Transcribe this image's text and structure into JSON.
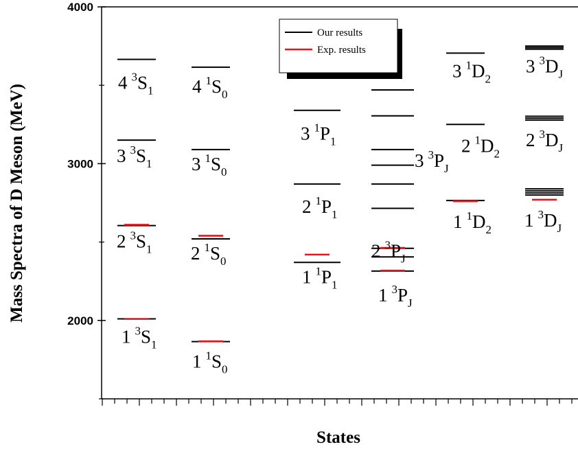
{
  "chart_data": {
    "type": "level-diagram",
    "title": "",
    "xlabel": "States",
    "ylabel": "Mass Spectra of D Meson (MeV)",
    "ylim": [
      1500,
      4000
    ],
    "yticks": [
      2000,
      3000,
      4000
    ],
    "yminor": [
      1500,
      2500,
      3500
    ],
    "grid": false,
    "legend": {
      "position": "top-center",
      "entries": [
        {
          "label": "Our results",
          "color": "#000000"
        },
        {
          "label": "Exp. results",
          "color": "#e8141b"
        }
      ]
    },
    "colors": {
      "our": "#000000",
      "exp": "#e8141b"
    },
    "states": [
      {
        "label": {
          "n": "1",
          "mult": "3",
          "L": "S",
          "J": "1"
        },
        "our": [
          2010
        ],
        "exp": [
          2010
        ]
      },
      {
        "label": {
          "n": "2",
          "mult": "3",
          "L": "S",
          "J": "1"
        },
        "our": [
          2605
        ],
        "exp": [
          2610
        ]
      },
      {
        "label": {
          "n": "3",
          "mult": "3",
          "L": "S",
          "J": "1"
        },
        "our": [
          3150
        ],
        "exp": []
      },
      {
        "label": {
          "n": "4",
          "mult": "3",
          "L": "S",
          "J": "1"
        },
        "our": [
          3665
        ],
        "exp": []
      },
      {
        "label": {
          "n": "1",
          "mult": "1",
          "L": "S",
          "J": "0"
        },
        "our": [
          1865
        ],
        "exp": [
          1867
        ]
      },
      {
        "label": {
          "n": "2",
          "mult": "1",
          "L": "S",
          "J": "0"
        },
        "our": [
          2520
        ],
        "exp": [
          2540
        ]
      },
      {
        "label": {
          "n": "3",
          "mult": "1",
          "L": "S",
          "J": "0"
        },
        "our": [
          3090
        ],
        "exp": []
      },
      {
        "label": {
          "n": "4",
          "mult": "1",
          "L": "S",
          "J": "0"
        },
        "our": [
          3615
        ],
        "exp": []
      },
      {
        "label": {
          "n": "1",
          "mult": "1",
          "L": "P",
          "J": "1"
        },
        "our": [
          2370
        ],
        "exp": [
          2420
        ]
      },
      {
        "label": {
          "n": "2",
          "mult": "1",
          "L": "P",
          "J": "1"
        },
        "our": [
          2870
        ],
        "exp": []
      },
      {
        "label": {
          "n": "3",
          "mult": "1",
          "L": "P",
          "J": "1"
        },
        "our": [
          3340
        ],
        "exp": []
      },
      {
        "label": {
          "n": "1",
          "mult": "3",
          "L": "P",
          "J": "J"
        },
        "our": [
          2315,
          2405,
          2460
        ],
        "exp": [
          2318,
          2463
        ]
      },
      {
        "label": {
          "n": "2",
          "mult": "3",
          "L": "P",
          "J": "J"
        },
        "our": [
          2715,
          2870
        ],
        "exp": []
      },
      {
        "label": {
          "n": "3",
          "mult": "3",
          "L": "P",
          "J": "J"
        },
        "our": [
          2990,
          3090,
          3305,
          3470
        ],
        "exp": []
      },
      {
        "label": {
          "n": "1",
          "mult": "1",
          "L": "D",
          "J": "2"
        },
        "our": [
          2765
        ],
        "exp": [
          2760
        ]
      },
      {
        "label": {
          "n": "2",
          "mult": "1",
          "L": "D",
          "J": "2"
        },
        "our": [
          3250
        ],
        "exp": []
      },
      {
        "label": {
          "n": "3",
          "mult": "1",
          "L": "D",
          "J": "2"
        },
        "our": [
          3705
        ],
        "exp": []
      },
      {
        "label": {
          "n": "1",
          "mult": "3",
          "L": "D",
          "J": "J"
        },
        "our": [
          2800,
          2813,
          2826,
          2839
        ],
        "exp": [
          2770
        ]
      },
      {
        "label": {
          "n": "2",
          "mult": "3",
          "L": "D",
          "J": "J"
        },
        "our": [
          3278,
          3290,
          3302
        ],
        "exp": []
      },
      {
        "label": {
          "n": "3",
          "mult": "3",
          "L": "D",
          "J": "J"
        },
        "our": [
          3730,
          3740,
          3750
        ],
        "exp": []
      }
    ]
  }
}
